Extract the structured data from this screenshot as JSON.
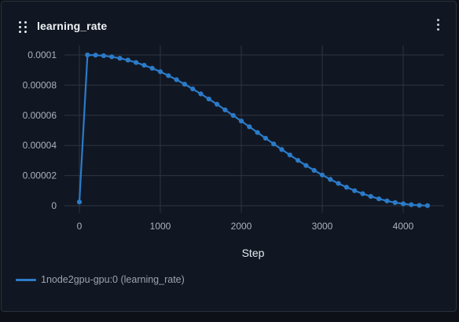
{
  "panel": {
    "title": "learning_rate",
    "drag_icon": "drag-handle-icon",
    "menu_icon": "more-vertical-icon"
  },
  "colors": {
    "series": "#2b7bc9",
    "grid": "#2e3440",
    "tick_text": "#aab2bd",
    "panel_bg": "#111722"
  },
  "chart_data": {
    "type": "line",
    "xlabel": "Step",
    "ylabel": "",
    "xlim": [
      0,
      4300
    ],
    "ylim": [
      0,
      0.0001
    ],
    "x_ticks": [
      0,
      1000,
      2000,
      3000,
      4000
    ],
    "x_tick_labels": [
      "0",
      "1000",
      "2000",
      "3000",
      "4000"
    ],
    "y_ticks": [
      0,
      2e-05,
      4e-05,
      6e-05,
      8e-05,
      0.0001
    ],
    "y_tick_labels": [
      "0",
      "0.00002",
      "0.00004",
      "0.00006",
      "0.00008",
      "0.0001"
    ],
    "grid": true,
    "legend_position": "bottom-left",
    "series": [
      {
        "name": "1node2gpu-gpu:0 (learning_rate)",
        "color": "#2b7bc9",
        "x": [
          0,
          100,
          200,
          300,
          400,
          500,
          600,
          700,
          800,
          900,
          1000,
          1100,
          1200,
          1300,
          1400,
          1500,
          1600,
          1700,
          1800,
          1900,
          2000,
          2100,
          2200,
          2300,
          2400,
          2500,
          2600,
          2700,
          2800,
          2900,
          3000,
          3100,
          3200,
          3300,
          3400,
          3500,
          3600,
          3700,
          3800,
          3900,
          4000,
          4100,
          4200,
          4300
        ],
        "y": [
          2.5e-06,
          0.0001,
          9.99e-05,
          9.95e-05,
          9.88e-05,
          9.78e-05,
          9.66e-05,
          9.5e-05,
          9.32e-05,
          9.12e-05,
          8.89e-05,
          8.63e-05,
          8.36e-05,
          8.06e-05,
          7.75e-05,
          7.42e-05,
          7.08e-05,
          6.73e-05,
          6.36e-05,
          5.99e-05,
          5.62e-05,
          5.24e-05,
          4.86e-05,
          4.48e-05,
          4.1e-05,
          3.73e-05,
          3.37e-05,
          3.01e-05,
          2.67e-05,
          2.35e-05,
          2.04e-05,
          1.75e-05,
          1.48e-05,
          1.23e-05,
          1e-05,
          8e-06,
          6.2e-06,
          4.6e-06,
          3.2e-06,
          2.1e-06,
          1.3e-06,
          7e-07,
          3e-07,
          1e-07
        ]
      }
    ]
  }
}
